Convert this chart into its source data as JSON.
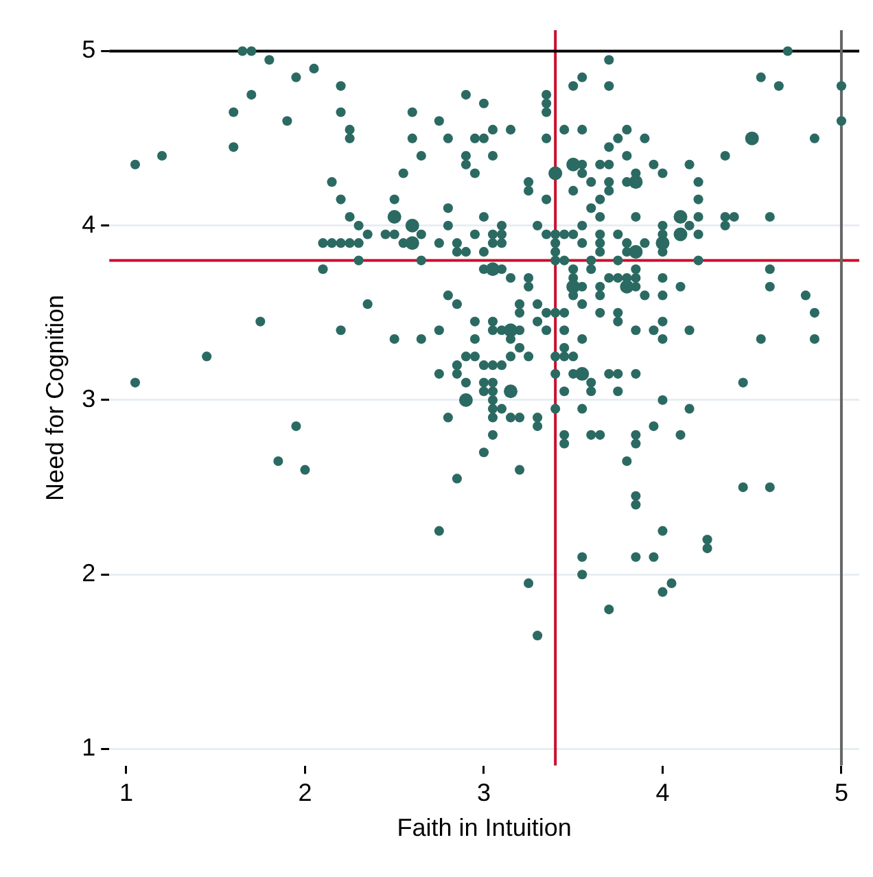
{
  "chart_data": {
    "type": "bubble",
    "xlabel": "Faith in Intuition",
    "ylabel": "Need for Cognition",
    "xlim": [
      0.905,
      5.1
    ],
    "ylim": [
      0.905,
      5.12
    ],
    "xticks": [
      1,
      2,
      3,
      4,
      5
    ],
    "yticks": [
      1,
      2,
      3,
      4,
      5
    ],
    "grid": "y",
    "legend": false,
    "ref_lines": [
      {
        "axis": "x",
        "value": 3.4,
        "color": "#c8102e"
      },
      {
        "axis": "y",
        "value": 3.8,
        "color": "#c8102e"
      },
      {
        "axis": "y",
        "value": 5,
        "color": "#000000"
      },
      {
        "axis": "x",
        "value": 5,
        "color": "#666666"
      }
    ],
    "series": [
      {
        "color": "#2b6a62",
        "x": [
          1.05,
          1.2,
          1.05,
          1.45,
          1.65,
          1.7,
          1.8,
          1.95,
          2.05,
          2.2,
          1.7,
          1.6,
          1.9,
          2.2,
          2.25,
          2.25,
          1.6,
          2.15,
          2.2,
          2.25,
          2.3,
          2.35,
          2.1,
          2.15,
          2.2,
          2.25,
          2.3,
          2.3,
          2.1,
          2.5,
          2.5,
          2.6,
          2.6,
          2.45,
          2.5,
          2.55,
          2.65,
          2.65,
          2.55,
          2.65,
          2.6,
          2.6,
          2.75,
          2.8,
          2.9,
          3.0,
          2.95,
          3.0,
          3.05,
          2.9,
          2.9,
          2.95,
          3.05,
          2.8,
          2.8,
          2.75,
          2.85,
          2.85,
          2.9,
          2.95,
          3.0,
          3.0,
          3.05,
          3.05,
          3.0,
          3.05,
          2.35,
          1.75,
          2.2,
          2.5,
          2.65,
          2.75,
          2.8,
          2.85,
          2.95,
          2.95,
          3.05,
          3.05,
          1.95,
          1.85,
          2.0,
          2.75,
          2.9,
          2.95,
          2.85,
          3.0,
          3.05,
          2.75,
          2.85,
          2.9,
          3.0,
          3.05,
          3.0,
          2.9,
          3.05,
          2.8,
          3.05,
          3.05,
          3.05,
          3.0,
          2.85,
          3.35,
          3.35,
          3.35,
          3.5,
          3.55,
          3.7,
          3.7,
          4.7,
          4.55,
          4.65,
          5.0,
          5.0,
          4.5,
          4.85,
          4.35,
          3.15,
          3.35,
          3.45,
          3.55,
          3.8,
          3.75,
          3.9,
          3.7,
          3.8,
          3.5,
          3.55,
          3.65,
          3.7,
          3.95,
          4.15,
          3.4,
          3.55,
          3.85,
          4.0,
          3.25,
          3.25,
          3.6,
          3.7,
          3.8,
          3.85,
          4.2,
          3.5,
          3.7,
          3.35,
          3.65,
          4.2,
          3.6,
          3.65,
          3.85,
          4.1,
          4.2,
          4.35,
          4.4,
          4.6,
          3.1,
          3.3,
          3.55,
          4.0,
          4.15,
          4.35,
          3.1,
          3.35,
          3.4,
          3.45,
          3.5,
          3.65,
          3.75,
          4.0,
          4.1,
          4.2,
          3.1,
          3.4,
          3.55,
          3.65,
          3.8,
          3.9,
          4.0,
          3.4,
          3.65,
          3.8,
          3.85,
          4.0,
          3.4,
          3.45,
          3.6,
          3.75,
          4.2,
          3.1,
          3.5,
          3.6,
          3.85,
          4.6,
          3.15,
          3.25,
          3.5,
          3.7,
          3.75,
          3.8,
          3.85,
          4.0,
          3.25,
          3.5,
          3.55,
          3.65,
          3.8,
          3.85,
          4.1,
          4.6,
          3.5,
          3.65,
          3.9,
          4.0,
          4.8,
          3.2,
          3.3,
          3.55,
          4.85,
          3.2,
          3.35,
          3.4,
          3.45,
          3.65,
          3.75,
          3.3,
          3.75,
          4.0,
          3.1,
          3.15,
          3.2,
          3.35,
          3.45,
          3.85,
          3.95,
          4.15,
          4.55,
          4.85,
          3.55,
          4.0,
          3.2,
          3.45,
          3.15,
          3.15,
          3.25,
          3.4,
          3.45,
          3.5,
          3.1,
          3.4,
          3.5,
          3.55,
          3.7,
          3.75,
          3.85,
          3.6,
          4.45,
          3.05,
          3.15,
          3.45,
          3.6,
          3.75,
          4.0,
          3.1,
          3.4,
          3.55,
          4.15,
          3.15,
          3.2,
          3.3,
          3.3,
          3.95,
          3.45,
          3.45,
          3.6,
          3.65,
          3.85,
          3.85,
          4.1,
          3.8,
          3.2,
          4.45,
          4.6,
          3.85,
          3.85,
          4.0,
          4.25,
          4.25,
          3.95,
          3.55,
          3.85,
          3.55,
          3.25,
          4.0,
          4.05,
          3.7,
          3.3
        ],
        "values": [
          4.35,
          4.4,
          3.1,
          3.25,
          5.0,
          5.0,
          4.95,
          4.85,
          4.9,
          4.8,
          4.75,
          4.65,
          4.6,
          4.65,
          4.55,
          4.5,
          4.45,
          4.25,
          4.15,
          4.05,
          4.0,
          3.95,
          3.9,
          3.9,
          3.9,
          3.9,
          3.9,
          3.8,
          3.75,
          4.15,
          4.05,
          4.0,
          3.9,
          3.95,
          3.95,
          3.9,
          3.95,
          3.8,
          4.3,
          4.4,
          4.5,
          4.65,
          4.6,
          4.5,
          4.75,
          4.7,
          4.5,
          4.5,
          4.55,
          4.4,
          4.35,
          4.3,
          4.4,
          4.1,
          4.0,
          3.9,
          3.9,
          3.85,
          3.85,
          3.95,
          4.05,
          3.85,
          3.95,
          3.9,
          3.75,
          3.75,
          3.55,
          3.45,
          3.4,
          3.35,
          3.35,
          3.4,
          3.6,
          3.55,
          3.45,
          3.35,
          3.45,
          3.4,
          2.85,
          2.65,
          2.6,
          2.25,
          3.25,
          3.25,
          3.2,
          3.2,
          3.2,
          3.15,
          3.15,
          3.1,
          3.1,
          3.1,
          3.05,
          3.0,
          3.0,
          2.9,
          2.95,
          2.9,
          2.8,
          2.7,
          2.55,
          4.75,
          4.7,
          4.65,
          4.8,
          4.85,
          4.95,
          4.8,
          5.0,
          4.85,
          4.8,
          4.8,
          4.6,
          4.5,
          4.5,
          4.4,
          4.55,
          4.5,
          4.55,
          4.55,
          4.55,
          4.5,
          4.5,
          4.45,
          4.4,
          4.35,
          4.35,
          4.35,
          4.35,
          4.35,
          4.35,
          4.3,
          4.3,
          4.3,
          4.3,
          4.25,
          4.2,
          4.25,
          4.25,
          4.25,
          4.25,
          4.25,
          4.2,
          4.2,
          4.15,
          4.15,
          4.15,
          4.1,
          4.05,
          4.05,
          4.05,
          4.05,
          4.05,
          4.05,
          4.05,
          4.0,
          4.0,
          4.0,
          4.0,
          4.0,
          4.0,
          3.95,
          3.95,
          3.95,
          3.95,
          3.95,
          3.95,
          3.95,
          3.95,
          3.95,
          3.95,
          3.9,
          3.9,
          3.9,
          3.9,
          3.9,
          3.9,
          3.9,
          3.85,
          3.85,
          3.85,
          3.85,
          3.85,
          3.8,
          3.8,
          3.8,
          3.8,
          3.8,
          3.75,
          3.75,
          3.75,
          3.75,
          3.75,
          3.7,
          3.7,
          3.7,
          3.7,
          3.7,
          3.7,
          3.7,
          3.7,
          3.65,
          3.65,
          3.65,
          3.65,
          3.65,
          3.65,
          3.65,
          3.65,
          3.6,
          3.6,
          3.6,
          3.6,
          3.6,
          3.55,
          3.55,
          3.55,
          3.5,
          3.5,
          3.5,
          3.5,
          3.5,
          3.5,
          3.5,
          3.45,
          3.45,
          3.45,
          3.4,
          3.4,
          3.4,
          3.4,
          3.4,
          3.4,
          3.4,
          3.4,
          3.35,
          3.35,
          3.35,
          3.35,
          3.3,
          3.3,
          3.35,
          3.25,
          3.25,
          3.25,
          3.25,
          3.25,
          3.2,
          3.15,
          3.15,
          3.15,
          3.15,
          3.15,
          3.15,
          3.1,
          3.1,
          3.05,
          3.05,
          3.05,
          3.05,
          3.05,
          3.0,
          2.95,
          2.95,
          2.95,
          2.95,
          2.9,
          2.9,
          2.9,
          2.85,
          2.85,
          2.8,
          2.75,
          2.8,
          2.8,
          2.8,
          2.75,
          2.8,
          2.65,
          2.6,
          2.5,
          2.5,
          2.45,
          2.4,
          2.25,
          2.2,
          2.15,
          2.1,
          2.1,
          2.1,
          2.0,
          1.95,
          1.9,
          1.95,
          1.8,
          1.65
        ],
        "sizes": [
          0.5,
          0.5,
          0.5,
          0.5,
          0.5,
          0.5,
          0.5,
          0.5,
          0.5,
          0.5,
          0.5,
          0.5,
          0.5,
          0.5,
          0.5,
          0.5,
          0.5,
          0.5,
          0.5,
          0.5,
          0.5,
          0.5,
          0.5,
          0.5,
          0.5,
          0.5,
          0.5,
          0.5,
          0.5,
          0.5,
          1,
          1,
          1,
          0.5,
          0.5,
          0.5,
          0.5,
          0.5,
          0.5,
          0.5,
          0.5,
          0.5,
          0.5,
          0.5,
          0.5,
          0.5,
          0.5,
          0.5,
          0.5,
          0.5,
          0.5,
          0.5,
          0.5,
          0.5,
          0.5,
          0.5,
          0.5,
          0.5,
          0.5,
          0.5,
          0.5,
          0.5,
          0.5,
          0.5,
          0.5,
          1,
          0.5,
          0.5,
          0.5,
          0.5,
          0.5,
          0.5,
          0.5,
          0.5,
          0.5,
          0.5,
          0.5,
          0.5,
          0.5,
          0.5,
          0.5,
          0.5,
          0.5,
          0.5,
          0.5,
          0.5,
          0.5,
          0.5,
          0.5,
          0.5,
          0.5,
          0.5,
          0.5,
          1,
          0.5,
          0.5,
          0.5,
          0.5,
          0.5,
          0.5,
          0.5,
          0.5,
          0.5,
          0.5,
          0.5,
          0.5,
          0.5,
          0.5,
          0.5,
          0.5,
          0.5,
          0.5,
          0.5,
          1,
          0.5,
          0.5,
          0.5,
          0.5,
          0.5,
          0.5,
          0.5,
          0.5,
          0.5,
          0.5,
          0.5,
          1,
          0.5,
          0.5,
          0.5,
          0.5,
          0.5,
          1,
          0.5,
          0.5,
          0.5,
          0.5,
          0.5,
          0.5,
          0.5,
          0.5,
          1,
          0.5,
          0.5,
          0.5,
          0.5,
          0.5,
          0.5,
          0.5,
          0.5,
          0.5,
          1,
          0.5,
          0.5,
          0.5,
          0.5,
          0.5,
          0.5,
          0.5,
          0.5,
          0.5,
          0.5,
          0.5,
          0.5,
          0.5,
          0.5,
          0.5,
          0.5,
          0.5,
          0.5,
          1,
          0.5,
          0.5,
          0.5,
          0.5,
          0.5,
          0.5,
          0.5,
          1,
          0.5,
          0.5,
          0.5,
          1,
          0.5,
          0.5,
          0.5,
          0.5,
          0.5,
          0.5,
          0.5,
          0.5,
          0.5,
          0.5,
          0.5,
          0.5,
          0.5,
          0.5,
          0.5,
          0.5,
          0.5,
          0.5,
          0.5,
          0.5,
          1,
          0.5,
          0.5,
          1,
          0.5,
          0.5,
          0.5,
          0.5,
          0.5,
          0.5,
          0.5,
          0.5,
          0.5,
          0.5,
          0.5,
          0.5,
          0.5,
          0.5,
          0.5,
          0.5,
          0.5,
          0.5,
          0.5,
          0.5,
          0.5,
          0.5,
          1,
          0.5,
          0.5,
          0.5,
          0.5,
          0.5,
          0.5,
          0.5,
          0.5,
          0.5,
          0.5,
          0.5,
          0.5,
          0.5,
          0.5,
          0.5,
          0.5,
          0.5,
          0.5,
          0.5,
          0.5,
          0.5,
          1,
          0.5,
          0.5,
          0.5,
          0.5,
          0.5,
          0.5,
          1,
          0.5,
          0.5,
          0.5,
          0.5,
          0.5,
          0.5,
          0.5,
          0.5,
          0.5,
          0.5,
          0.5,
          0.5,
          0.5,
          0.5,
          0.5,
          0.5,
          0.5,
          0.5,
          0.5,
          0.5,
          0.5,
          0.5,
          0.5,
          0.5,
          0.5,
          0.5,
          0.5,
          0.5,
          0.5,
          0.5,
          0.5,
          0.5,
          0.5,
          0.5,
          0.5,
          0.5,
          0.5,
          0.5
        ]
      }
    ]
  }
}
